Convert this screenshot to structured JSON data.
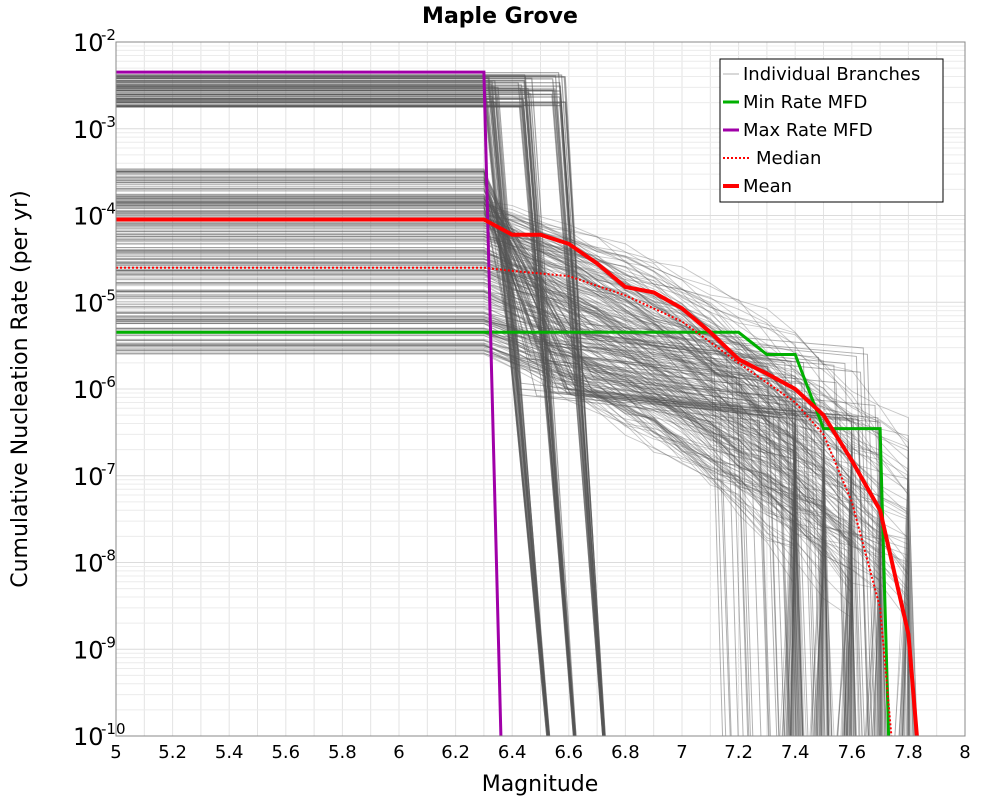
{
  "chart_data": {
    "type": "line",
    "title": "Maple Grove",
    "xlabel": "Magnitude",
    "ylabel": "Cumulative Nucleation Rate (per yr)",
    "xlim": [
      5,
      8
    ],
    "ylim": [
      1e-10,
      0.01
    ],
    "y_scale": "log",
    "x_ticks": [
      "5",
      "5.2",
      "5.4",
      "5.6",
      "5.8",
      "6",
      "6.2",
      "6.4",
      "6.6",
      "6.8",
      "7",
      "7.2",
      "7.4",
      "7.6",
      "7.8",
      "8"
    ],
    "y_ticks": [
      {
        "base": "10",
        "exp": "-10"
      },
      {
        "base": "10",
        "exp": "-9"
      },
      {
        "base": "10",
        "exp": "-8"
      },
      {
        "base": "10",
        "exp": "-7"
      },
      {
        "base": "10",
        "exp": "-6"
      },
      {
        "base": "10",
        "exp": "-5"
      },
      {
        "base": "10",
        "exp": "-4"
      },
      {
        "base": "10",
        "exp": "-3"
      },
      {
        "base": "10",
        "exp": "-2"
      }
    ],
    "grid": true,
    "legend_position": "top-right",
    "colors": {
      "branches": "#555555",
      "min": "#00b000",
      "max": "#a000a8",
      "median": "#ff0000",
      "mean": "#ff0000"
    },
    "legend": [
      {
        "key": "branches",
        "label": "Individual Branches",
        "style": "thin"
      },
      {
        "key": "min",
        "label": "Min Rate MFD",
        "style": "solid"
      },
      {
        "key": "max",
        "label": "Max Rate MFD",
        "style": "solid"
      },
      {
        "key": "median",
        "label": "Median",
        "style": "dotted"
      },
      {
        "key": "mean",
        "label": "Mean",
        "style": "thick"
      }
    ],
    "series": [
      {
        "key": "min",
        "x": [
          5.0,
          6.3,
          7.2,
          7.3,
          7.4,
          7.5,
          7.6,
          7.7,
          7.73
        ],
        "y": [
          4.5e-06,
          4.5e-06,
          4.5e-06,
          2.5e-06,
          2.5e-06,
          3.5e-07,
          3.5e-07,
          3.5e-07,
          1e-10
        ]
      },
      {
        "key": "max",
        "x": [
          5.0,
          6.3,
          6.36
        ],
        "y": [
          0.0045,
          0.0045,
          1e-10
        ]
      },
      {
        "key": "median",
        "x": [
          5.0,
          6.3,
          6.4,
          6.6,
          6.8,
          7.0,
          7.2,
          7.4,
          7.5,
          7.6,
          7.7,
          7.74
        ],
        "y": [
          2.5e-05,
          2.5e-05,
          2.3e-05,
          2e-05,
          1.2e-05,
          6e-06,
          2e-06,
          7e-07,
          3e-07,
          5e-08,
          3e-09,
          1e-10
        ]
      },
      {
        "key": "mean",
        "x": [
          5.0,
          6.3,
          6.4,
          6.5,
          6.6,
          6.7,
          6.8,
          6.9,
          7.0,
          7.1,
          7.2,
          7.3,
          7.4,
          7.5,
          7.6,
          7.7,
          7.8,
          7.83
        ],
        "y": [
          9e-05,
          9e-05,
          6e-05,
          6e-05,
          4.7e-05,
          2.8e-05,
          1.5e-05,
          1.3e-05,
          8.5e-06,
          4.5e-06,
          2.2e-06,
          1.5e-06,
          1e-06,
          5e-07,
          1.5e-07,
          4e-08,
          1.5e-09,
          1e-10
        ]
      }
    ]
  }
}
